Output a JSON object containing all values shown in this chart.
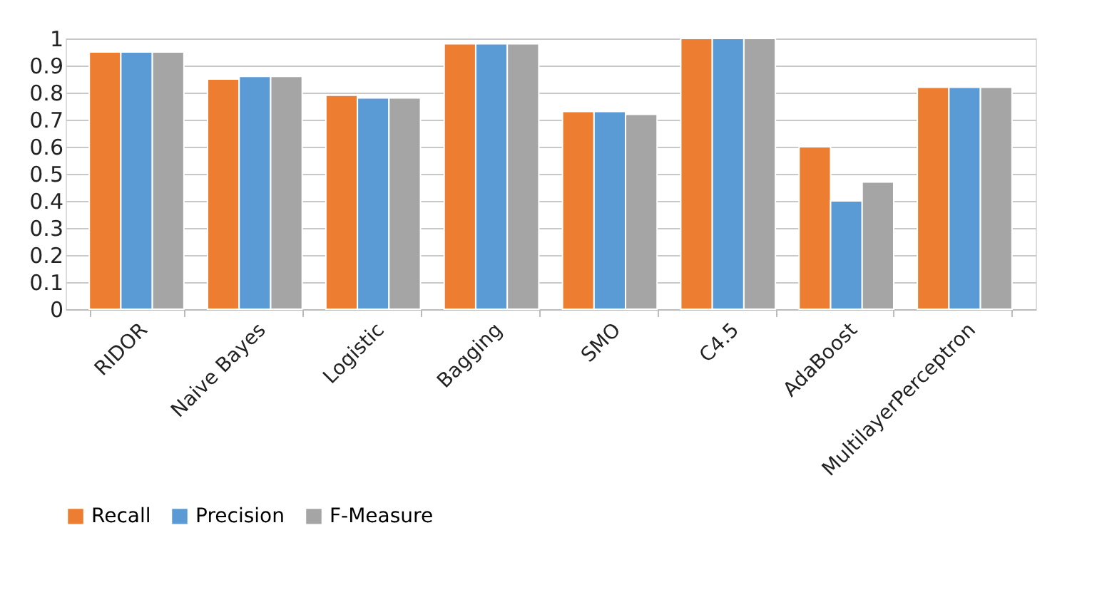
{
  "chart_data": {
    "type": "bar",
    "categories": [
      "RIDOR",
      "Naive Bayes",
      "Logistic",
      "Bagging",
      "SMO",
      "C4.5",
      "AdaBoost",
      "MultilayerPerceptron"
    ],
    "series": [
      {
        "name": "Recall",
        "color": "#ed7d31",
        "values": [
          0.95,
          0.85,
          0.79,
          0.98,
          0.73,
          1.0,
          0.6,
          0.82
        ]
      },
      {
        "name": "Precision",
        "color": "#5b9bd5",
        "values": [
          0.95,
          0.86,
          0.78,
          0.98,
          0.73,
          1.0,
          0.4,
          0.82
        ]
      },
      {
        "name": "F-Measure",
        "color": "#a5a5a5",
        "values": [
          0.95,
          0.86,
          0.78,
          0.98,
          0.72,
          1.0,
          0.47,
          0.82
        ]
      }
    ],
    "ylim": [
      0,
      1
    ],
    "yticks": [
      0,
      0.1,
      0.2,
      0.3,
      0.4,
      0.5,
      0.6,
      0.7,
      0.8,
      0.9,
      1
    ],
    "grid": "y",
    "legend": "bottom"
  }
}
